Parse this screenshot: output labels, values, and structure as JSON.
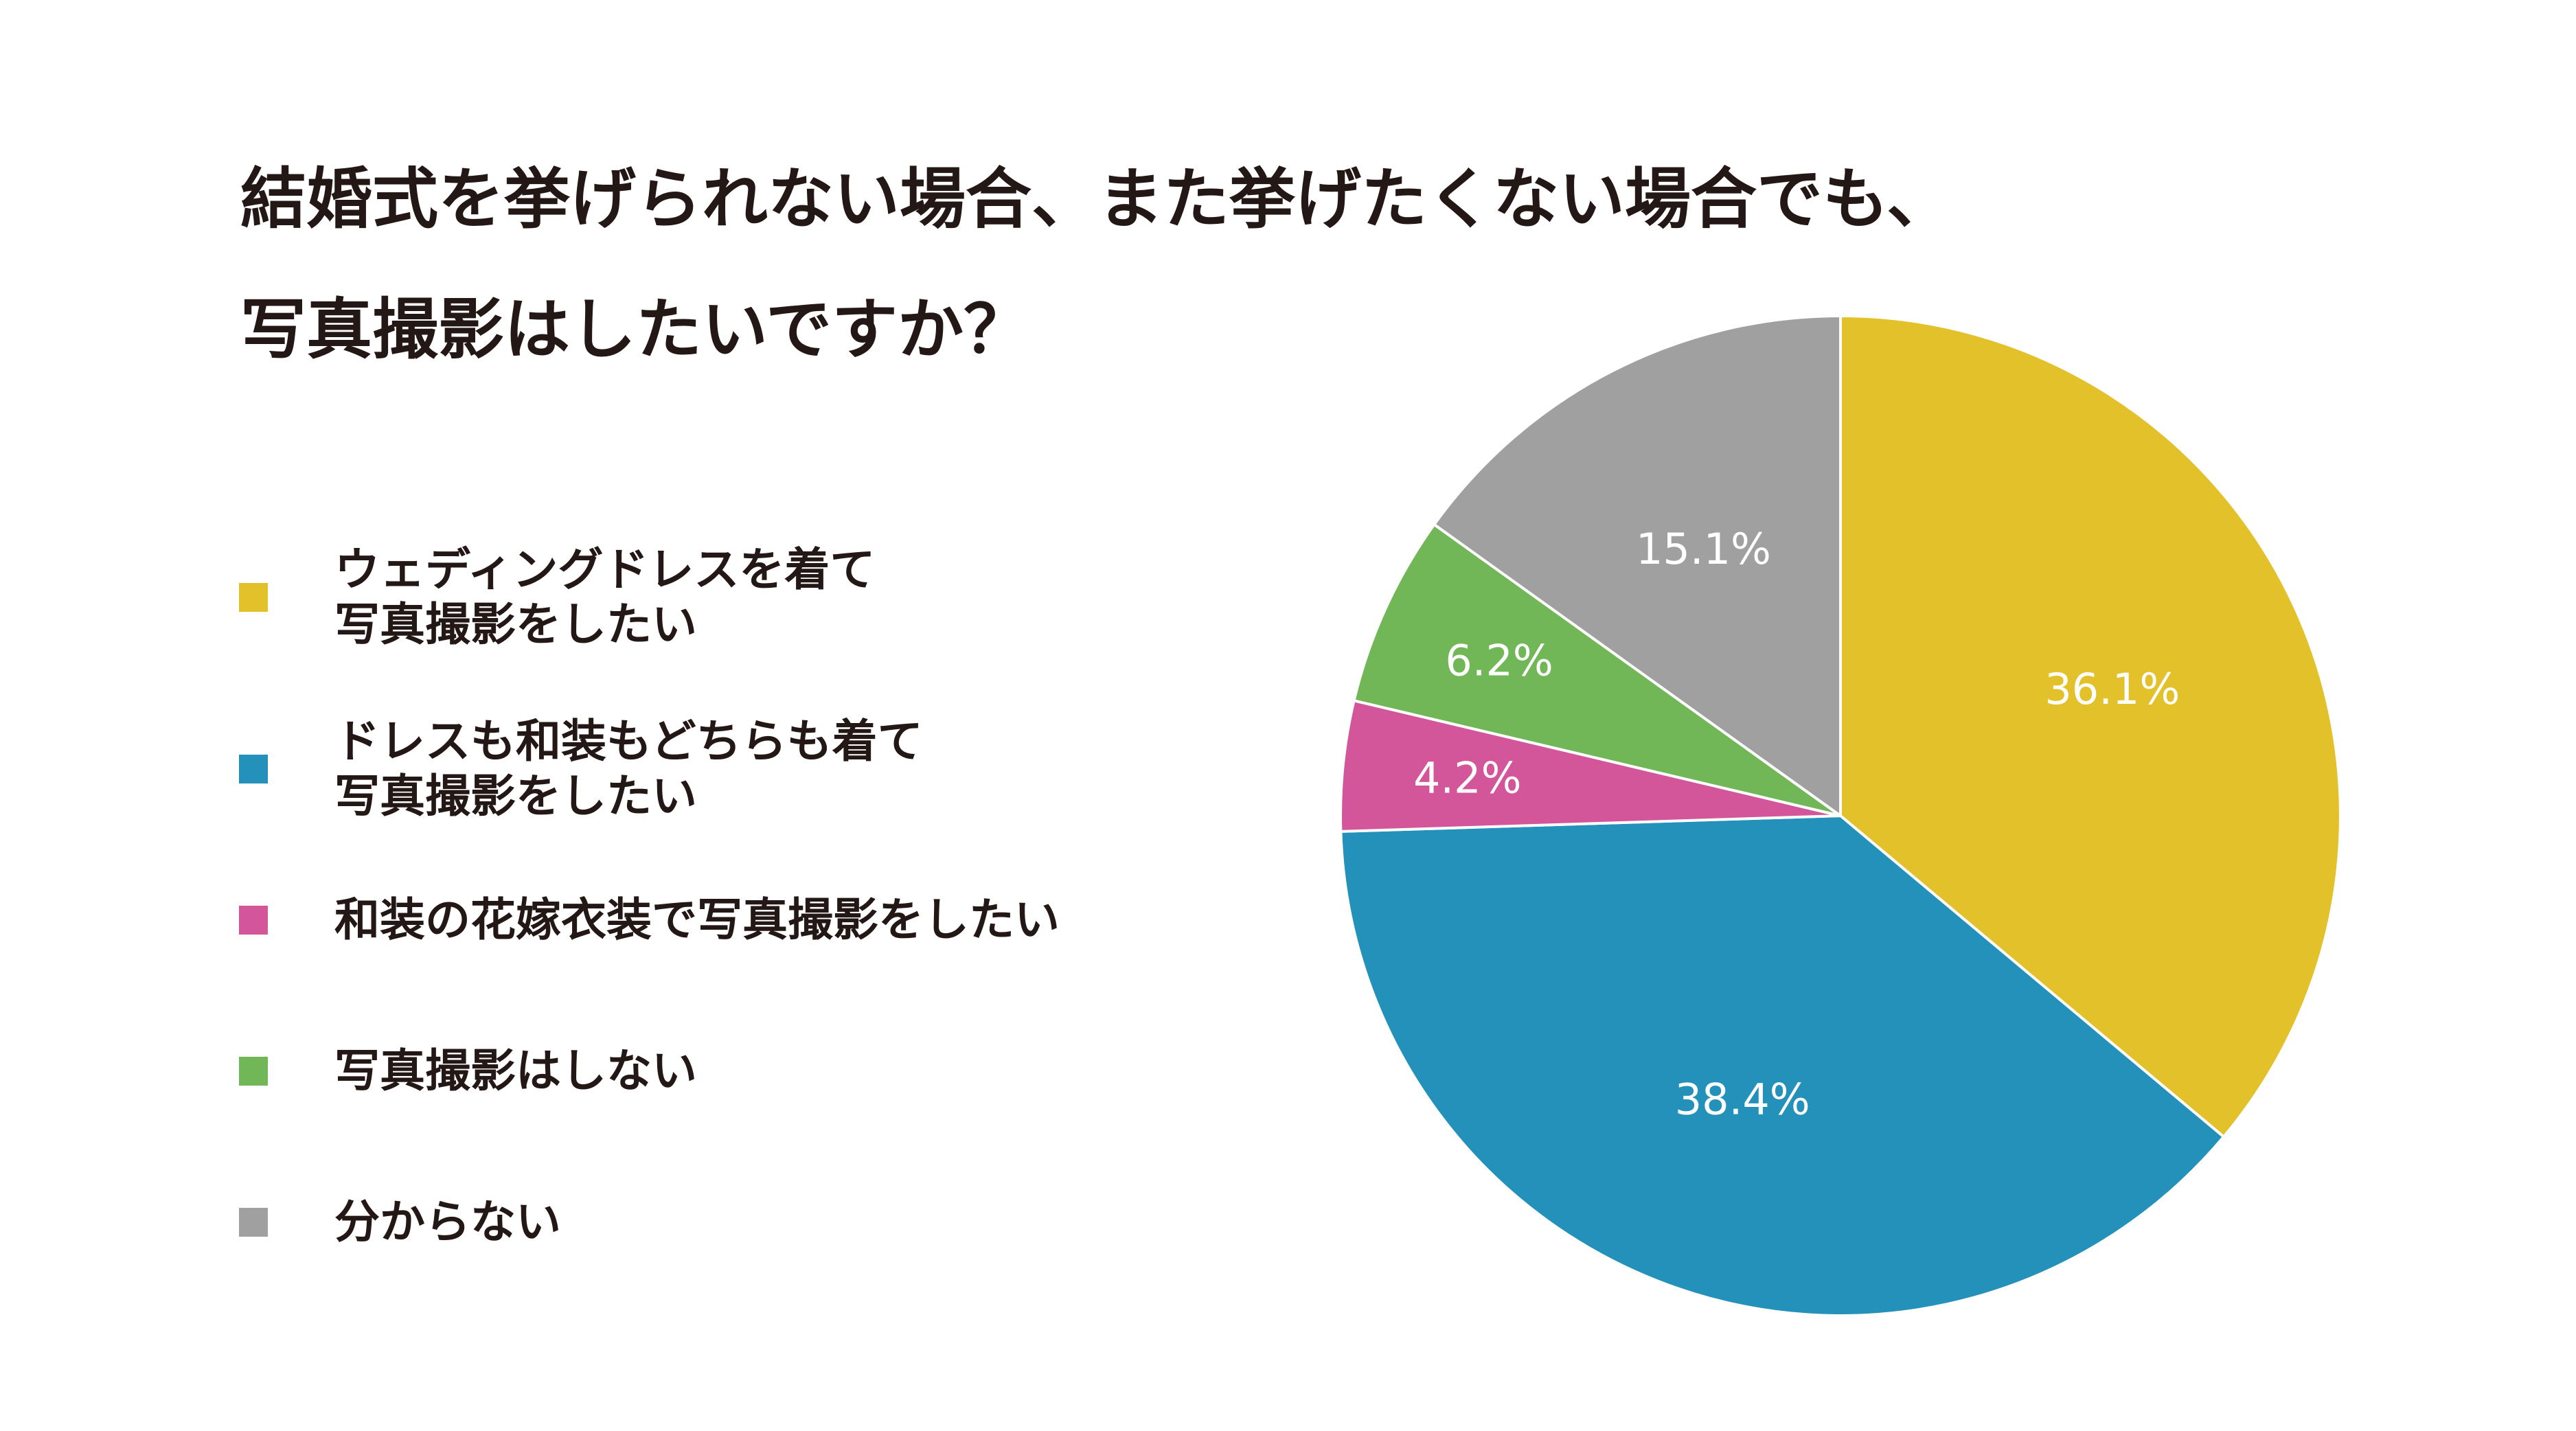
{
  "title": {
    "line1": "結婚式を挙げられない場合、また挙げたくない場合でも、",
    "line2": "写真撮影はしたいですか？"
  },
  "chart_data": {
    "type": "pie",
    "title": "結婚式を挙げられない場合、また挙げたくない場合でも、写真撮影はしたいですか？",
    "start_angle_deg": 0,
    "direction": "clockwise",
    "legend_position": "left",
    "slices": [
      {
        "label": "ウェディングドレスを着て\n写真撮影をしたい",
        "value": 36.1,
        "display": "36.1%",
        "color": "#E2C12B"
      },
      {
        "label": "ドレスも和装もどちらも着て\n写真撮影をしたい",
        "value": 38.4,
        "display": "38.4%",
        "color": "#2491BB"
      },
      {
        "label": "和装の花嫁衣装で写真撮影をしたい",
        "value": 4.2,
        "display": "4.2%",
        "color": "#D4569A"
      },
      {
        "label": "写真撮影はしない",
        "value": 6.2,
        "display": "6.2%",
        "color": "#72B757"
      },
      {
        "label": "分からない",
        "value": 15.1,
        "display": "15.1%",
        "color": "#A0A0A0"
      }
    ]
  }
}
